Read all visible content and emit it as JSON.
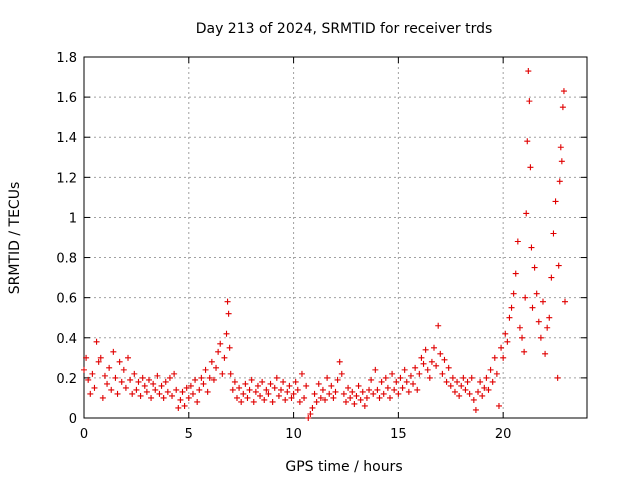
{
  "chart_data": {
    "type": "scatter",
    "title": "Day 213 of 2024, SRMTID for receiver trds",
    "xlabel": "GPS time / hours",
    "ylabel": "SRMTID / TECUs",
    "xlim": [
      0,
      24
    ],
    "ylim": [
      0,
      1.8
    ],
    "xticks": [
      0,
      5,
      10,
      15,
      20
    ],
    "xtick_labels": [
      "0",
      "5",
      "10",
      "15",
      "20"
    ],
    "yticks": [
      0,
      0.2,
      0.4,
      0.6,
      0.8,
      1.0,
      1.2,
      1.4,
      1.6,
      1.8
    ],
    "ytick_labels": [
      "0",
      "0.2",
      "0.4",
      "0.6",
      "0.8",
      "1",
      "1.2",
      "1.4",
      "1.6",
      "1.8"
    ],
    "grid": true,
    "marker": "+",
    "color": "#e00000",
    "series": [
      {
        "name": "SRMTID",
        "points": [
          [
            0.0,
            0.24
          ],
          [
            0.1,
            0.3
          ],
          [
            0.2,
            0.19
          ],
          [
            0.3,
            0.12
          ],
          [
            0.4,
            0.22
          ],
          [
            0.5,
            0.15
          ],
          [
            0.6,
            0.38
          ],
          [
            0.7,
            0.28
          ],
          [
            0.8,
            0.3
          ],
          [
            0.9,
            0.1
          ],
          [
            1.0,
            0.21
          ],
          [
            1.1,
            0.17
          ],
          [
            1.2,
            0.25
          ],
          [
            1.3,
            0.14
          ],
          [
            1.4,
            0.33
          ],
          [
            1.5,
            0.2
          ],
          [
            1.6,
            0.12
          ],
          [
            1.7,
            0.28
          ],
          [
            1.8,
            0.18
          ],
          [
            1.9,
            0.24
          ],
          [
            2.0,
            0.15
          ],
          [
            2.1,
            0.3
          ],
          [
            2.2,
            0.19
          ],
          [
            2.3,
            0.12
          ],
          [
            2.4,
            0.22
          ],
          [
            2.5,
            0.14
          ],
          [
            2.6,
            0.18
          ],
          [
            2.7,
            0.11
          ],
          [
            2.8,
            0.2
          ],
          [
            2.9,
            0.16
          ],
          [
            3.0,
            0.13
          ],
          [
            3.1,
            0.19
          ],
          [
            3.2,
            0.1
          ],
          [
            3.3,
            0.17
          ],
          [
            3.4,
            0.14
          ],
          [
            3.5,
            0.21
          ],
          [
            3.6,
            0.12
          ],
          [
            3.7,
            0.16
          ],
          [
            3.8,
            0.1
          ],
          [
            3.9,
            0.18
          ],
          [
            4.0,
            0.13
          ],
          [
            4.1,
            0.2
          ],
          [
            4.2,
            0.11
          ],
          [
            4.3,
            0.22
          ],
          [
            4.4,
            0.14
          ],
          [
            4.5,
            0.05
          ],
          [
            4.6,
            0.09
          ],
          [
            4.7,
            0.13
          ],
          [
            4.8,
            0.06
          ],
          [
            4.9,
            0.15
          ],
          [
            5.0,
            0.1
          ],
          [
            5.1,
            0.16
          ],
          [
            5.2,
            0.12
          ],
          [
            5.3,
            0.19
          ],
          [
            5.4,
            0.08
          ],
          [
            5.5,
            0.14
          ],
          [
            5.6,
            0.2
          ],
          [
            5.7,
            0.17
          ],
          [
            5.8,
            0.24
          ],
          [
            5.9,
            0.13
          ],
          [
            6.0,
            0.2
          ],
          [
            6.1,
            0.28
          ],
          [
            6.2,
            0.19
          ],
          [
            6.3,
            0.25
          ],
          [
            6.4,
            0.33
          ],
          [
            6.5,
            0.37
          ],
          [
            6.6,
            0.22
          ],
          [
            6.7,
            0.3
          ],
          [
            6.8,
            0.42
          ],
          [
            6.85,
            0.58
          ],
          [
            6.9,
            0.52
          ],
          [
            6.95,
            0.35
          ],
          [
            7.0,
            0.22
          ],
          [
            7.1,
            0.14
          ],
          [
            7.2,
            0.18
          ],
          [
            7.3,
            0.1
          ],
          [
            7.4,
            0.15
          ],
          [
            7.5,
            0.08
          ],
          [
            7.6,
            0.12
          ],
          [
            7.7,
            0.17
          ],
          [
            7.8,
            0.1
          ],
          [
            7.9,
            0.14
          ],
          [
            8.0,
            0.19
          ],
          [
            8.1,
            0.08
          ],
          [
            8.2,
            0.13
          ],
          [
            8.3,
            0.16
          ],
          [
            8.4,
            0.11
          ],
          [
            8.5,
            0.18
          ],
          [
            8.6,
            0.09
          ],
          [
            8.7,
            0.14
          ],
          [
            8.8,
            0.12
          ],
          [
            8.9,
            0.17
          ],
          [
            9.0,
            0.08
          ],
          [
            9.1,
            0.15
          ],
          [
            9.2,
            0.2
          ],
          [
            9.3,
            0.11
          ],
          [
            9.4,
            0.14
          ],
          [
            9.5,
            0.18
          ],
          [
            9.6,
            0.09
          ],
          [
            9.7,
            0.13
          ],
          [
            9.8,
            0.16
          ],
          [
            9.9,
            0.1
          ],
          [
            10.0,
            0.12
          ],
          [
            10.1,
            0.18
          ],
          [
            10.2,
            0.14
          ],
          [
            10.3,
            0.08
          ],
          [
            10.4,
            0.22
          ],
          [
            10.5,
            0.1
          ],
          [
            10.6,
            0.16
          ],
          [
            10.7,
            0.0
          ],
          [
            10.8,
            0.02
          ],
          [
            10.9,
            0.05
          ],
          [
            11.0,
            0.12
          ],
          [
            11.1,
            0.08
          ],
          [
            11.2,
            0.17
          ],
          [
            11.3,
            0.1
          ],
          [
            11.4,
            0.14
          ],
          [
            11.5,
            0.09
          ],
          [
            11.6,
            0.2
          ],
          [
            11.7,
            0.12
          ],
          [
            11.8,
            0.16
          ],
          [
            11.9,
            0.1
          ],
          [
            12.0,
            0.13
          ],
          [
            12.1,
            0.19
          ],
          [
            12.2,
            0.28
          ],
          [
            12.3,
            0.22
          ],
          [
            12.4,
            0.12
          ],
          [
            12.5,
            0.08
          ],
          [
            12.6,
            0.15
          ],
          [
            12.7,
            0.1
          ],
          [
            12.8,
            0.13
          ],
          [
            12.9,
            0.07
          ],
          [
            13.0,
            0.11
          ],
          [
            13.1,
            0.16
          ],
          [
            13.2,
            0.09
          ],
          [
            13.3,
            0.13
          ],
          [
            13.4,
            0.06
          ],
          [
            13.5,
            0.1
          ],
          [
            13.6,
            0.14
          ],
          [
            13.7,
            0.19
          ],
          [
            13.8,
            0.12
          ],
          [
            13.9,
            0.24
          ],
          [
            14.0,
            0.14
          ],
          [
            14.1,
            0.1
          ],
          [
            14.2,
            0.18
          ],
          [
            14.3,
            0.12
          ],
          [
            14.4,
            0.2
          ],
          [
            14.5,
            0.15
          ],
          [
            14.6,
            0.1
          ],
          [
            14.7,
            0.22
          ],
          [
            14.8,
            0.14
          ],
          [
            14.9,
            0.18
          ],
          [
            15.0,
            0.12
          ],
          [
            15.1,
            0.2
          ],
          [
            15.2,
            0.15
          ],
          [
            15.3,
            0.24
          ],
          [
            15.4,
            0.18
          ],
          [
            15.5,
            0.13
          ],
          [
            15.6,
            0.21
          ],
          [
            15.7,
            0.17
          ],
          [
            15.8,
            0.25
          ],
          [
            15.9,
            0.14
          ],
          [
            16.0,
            0.22
          ],
          [
            16.1,
            0.3
          ],
          [
            16.2,
            0.27
          ],
          [
            16.3,
            0.34
          ],
          [
            16.4,
            0.24
          ],
          [
            16.5,
            0.2
          ],
          [
            16.6,
            0.28
          ],
          [
            16.7,
            0.35
          ],
          [
            16.8,
            0.26
          ],
          [
            16.9,
            0.46
          ],
          [
            17.0,
            0.32
          ],
          [
            17.1,
            0.22
          ],
          [
            17.2,
            0.29
          ],
          [
            17.3,
            0.18
          ],
          [
            17.4,
            0.25
          ],
          [
            17.5,
            0.16
          ],
          [
            17.6,
            0.2
          ],
          [
            17.7,
            0.13
          ],
          [
            17.8,
            0.18
          ],
          [
            17.9,
            0.11
          ],
          [
            18.0,
            0.16
          ],
          [
            18.1,
            0.2
          ],
          [
            18.2,
            0.14
          ],
          [
            18.3,
            0.18
          ],
          [
            18.4,
            0.12
          ],
          [
            18.5,
            0.2
          ],
          [
            18.6,
            0.09
          ],
          [
            18.7,
            0.04
          ],
          [
            18.8,
            0.13
          ],
          [
            18.9,
            0.18
          ],
          [
            19.0,
            0.11
          ],
          [
            19.1,
            0.15
          ],
          [
            19.2,
            0.2
          ],
          [
            19.3,
            0.14
          ],
          [
            19.4,
            0.24
          ],
          [
            19.5,
            0.18
          ],
          [
            19.6,
            0.3
          ],
          [
            19.7,
            0.22
          ],
          [
            19.8,
            0.06
          ],
          [
            19.9,
            0.35
          ],
          [
            20.0,
            0.3
          ],
          [
            20.1,
            0.42
          ],
          [
            20.2,
            0.38
          ],
          [
            20.3,
            0.5
          ],
          [
            20.4,
            0.55
          ],
          [
            20.5,
            0.62
          ],
          [
            20.6,
            0.72
          ],
          [
            20.7,
            0.88
          ],
          [
            20.8,
            0.45
          ],
          [
            20.9,
            0.4
          ],
          [
            21.0,
            0.33
          ],
          [
            21.05,
            0.6
          ],
          [
            21.1,
            1.02
          ],
          [
            21.15,
            1.38
          ],
          [
            21.2,
            1.73
          ],
          [
            21.25,
            1.58
          ],
          [
            21.3,
            1.25
          ],
          [
            21.35,
            0.85
          ],
          [
            21.4,
            0.55
          ],
          [
            21.5,
            0.75
          ],
          [
            21.6,
            0.62
          ],
          [
            21.7,
            0.48
          ],
          [
            21.8,
            0.4
          ],
          [
            21.9,
            0.58
          ],
          [
            22.0,
            0.32
          ],
          [
            22.1,
            0.45
          ],
          [
            22.2,
            0.5
          ],
          [
            22.3,
            0.7
          ],
          [
            22.4,
            0.92
          ],
          [
            22.5,
            1.08
          ],
          [
            22.6,
            0.2
          ],
          [
            22.65,
            0.76
          ],
          [
            22.7,
            1.18
          ],
          [
            22.75,
            1.35
          ],
          [
            22.8,
            1.28
          ],
          [
            22.85,
            1.55
          ],
          [
            22.9,
            1.63
          ],
          [
            22.95,
            0.58
          ]
        ]
      }
    ]
  }
}
